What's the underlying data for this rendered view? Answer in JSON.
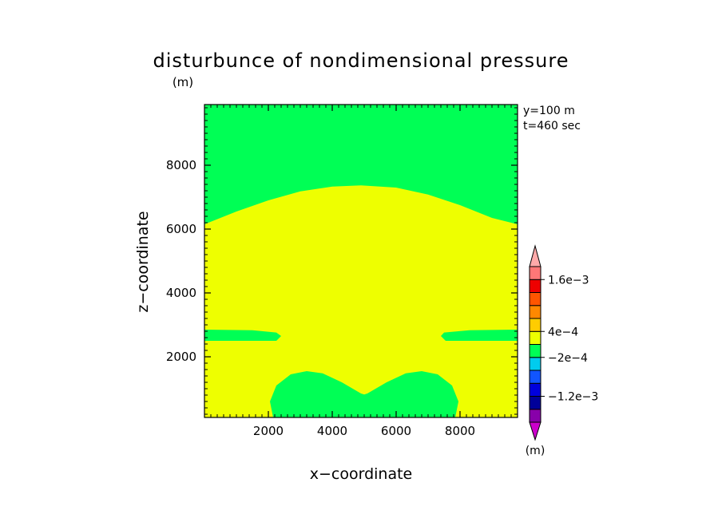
{
  "chart_data": {
    "type": "heatmap",
    "title": "disturbunce of nondimensional pressure",
    "title_unit": "(m)",
    "xlabel": "x−coordinate",
    "ylabel": "z−coordinate",
    "xlim": [
      0,
      9800
    ],
    "ylim": [
      100,
      9900
    ],
    "x_ticks": [
      2000,
      4000,
      6000,
      8000
    ],
    "y_ticks": [
      2000,
      4000,
      6000,
      8000
    ],
    "x_tick_labels": [
      "2000",
      "4000",
      "6000",
      "8000"
    ],
    "y_tick_labels": [
      "2000",
      "4000",
      "6000",
      "8000"
    ],
    "annotations": [
      "y=100 m",
      "t=460 sec"
    ],
    "colorbar": {
      "unit": "(m)",
      "tick_labels": [
        "1.6e−3",
        "4e−4",
        "−2e−4",
        "−1.2e−3"
      ],
      "colors_bottom_to_top": [
        "#cc00cc",
        "#8800aa",
        "#000099",
        "#0000dd",
        "#1155ff",
        "#00ccee",
        "#00ff55",
        "#eeff00",
        "#ffcc00",
        "#ff8800",
        "#ff5500",
        "#ee0000",
        "#ff7777",
        "#ffaaaa"
      ]
    },
    "regions": [
      {
        "name": "background",
        "color": "#eeff00"
      },
      {
        "name": "upper",
        "color": "#00ff55",
        "boundary": [
          [
            0,
            6150
          ],
          [
            1000,
            6550
          ],
          [
            2000,
            6900
          ],
          [
            3000,
            7180
          ],
          [
            4000,
            7330
          ],
          [
            4900,
            7370
          ],
          [
            6000,
            7300
          ],
          [
            7000,
            7080
          ],
          [
            8000,
            6750
          ],
          [
            9000,
            6350
          ],
          [
            9800,
            6150
          ]
        ]
      },
      {
        "name": "left-band",
        "color": "#00ff55",
        "outline": [
          [
            0,
            2850
          ],
          [
            1500,
            2830
          ],
          [
            2250,
            2760
          ],
          [
            2400,
            2650
          ],
          [
            2250,
            2500
          ],
          [
            0,
            2500
          ]
        ]
      },
      {
        "name": "right-band",
        "color": "#00ff55",
        "outline": [
          [
            9800,
            2850
          ],
          [
            8300,
            2830
          ],
          [
            7500,
            2760
          ],
          [
            7400,
            2650
          ],
          [
            7550,
            2500
          ],
          [
            9800,
            2500
          ]
        ]
      },
      {
        "name": "lower-lobes",
        "color": "#00ff55",
        "outline": [
          [
            2150,
            100
          ],
          [
            2050,
            600
          ],
          [
            2250,
            1100
          ],
          [
            2700,
            1450
          ],
          [
            3200,
            1550
          ],
          [
            3700,
            1480
          ],
          [
            4300,
            1200
          ],
          [
            4900,
            850
          ],
          [
            5000,
            820
          ],
          [
            5100,
            850
          ],
          [
            5700,
            1200
          ],
          [
            6300,
            1480
          ],
          [
            6800,
            1550
          ],
          [
            7300,
            1450
          ],
          [
            7750,
            1100
          ],
          [
            7950,
            600
          ],
          [
            7850,
            100
          ]
        ]
      }
    ]
  }
}
